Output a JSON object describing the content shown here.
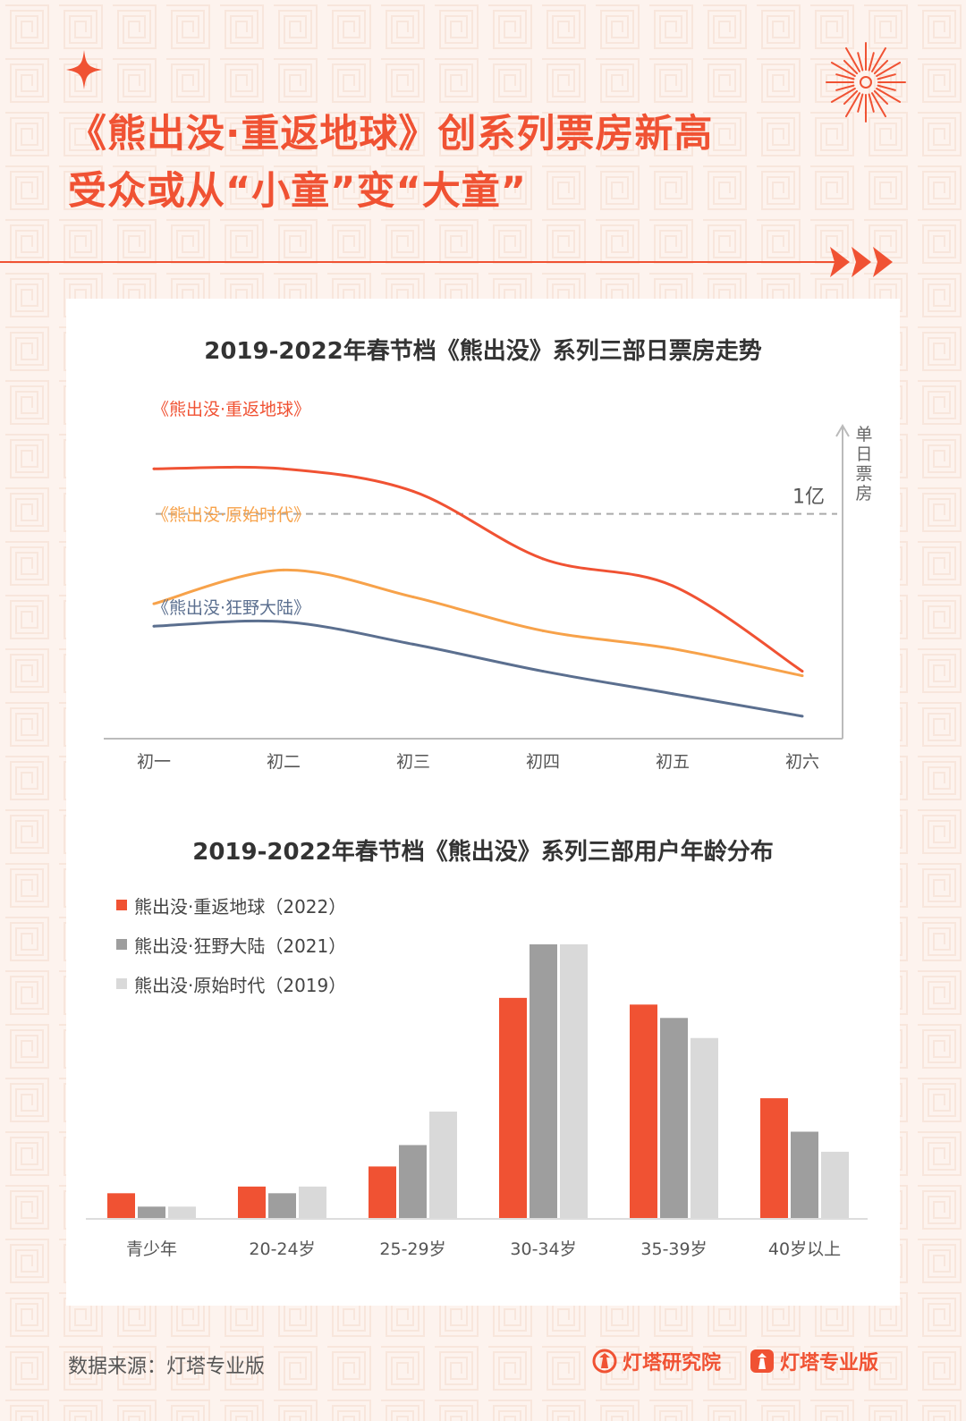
{
  "header": {
    "title_line1": "《熊出没·重返地球》创系列票房新高",
    "title_line2": "受众或从“小童”变“大童”"
  },
  "colors": {
    "accent": "#f05233",
    "orange": "#f7a24a",
    "blue_gray": "#5b6f8f",
    "gray_dark": "#9e9e9e",
    "gray_light": "#d9d9d9",
    "background": "#fdf3ee"
  },
  "icons": {
    "sparkle": "four-point-star-icon",
    "firework": "firework-burst-icon",
    "arrows": "triple-chevron-icon",
    "brand1": "lighthouse-research-icon",
    "brand2": "lighthouse-pro-icon"
  },
  "chart_data": [
    {
      "type": "line",
      "title": "2019-2022年春节档《熊出没》系列三部日票房走势",
      "categories": [
        "初一",
        "初二",
        "初三",
        "初四",
        "初五",
        "初六"
      ],
      "ylabel": "单日票房",
      "yaxis_labeled": false,
      "reference_line": {
        "value": 1,
        "label": "1亿"
      },
      "ylim": [
        0,
        1.4
      ],
      "series": [
        {
          "name": "《熊出没·重返地球》",
          "color": "#f05233",
          "values": [
            1.2,
            1.2,
            1.1,
            0.8,
            0.68,
            0.3
          ]
        },
        {
          "name": "《熊出没·原始时代》",
          "color": "#f7a24a",
          "values": [
            0.6,
            0.75,
            0.63,
            0.48,
            0.4,
            0.28
          ]
        },
        {
          "name": "《熊出没·狂野大陆》",
          "color": "#5b6f8f",
          "values": [
            0.5,
            0.52,
            0.42,
            0.3,
            0.2,
            0.1
          ]
        }
      ]
    },
    {
      "type": "bar",
      "title": "2019-2022年春节档《熊出没》系列三部用户年龄分布",
      "categories": [
        "青少年",
        "20-24岁",
        "25-29岁",
        "30-34岁",
        "35-39岁",
        "40岁以上"
      ],
      "yaxis_labeled": false,
      "legend_position": "top-left",
      "series": [
        {
          "name": "熊出没·重返地球（2022）",
          "color": "#f05233",
          "values": [
            3.7,
            4.7,
            7.7,
            32.9,
            31.9,
            17.9
          ]
        },
        {
          "name": "熊出没·狂野大陆（2021）",
          "color": "#9e9e9e",
          "values": [
            1.7,
            3.7,
            10.9,
            40.9,
            29.9,
            12.9
          ]
        },
        {
          "name": "熊出没·原始时代（2019）",
          "color": "#d9d9d9",
          "values": [
            1.7,
            4.7,
            15.9,
            40.9,
            26.9,
            9.9
          ]
        }
      ]
    }
  ],
  "footer": {
    "source": "数据来源：灯塔专业版",
    "brand1": "灯塔研究院",
    "brand2": "灯塔专业版"
  }
}
